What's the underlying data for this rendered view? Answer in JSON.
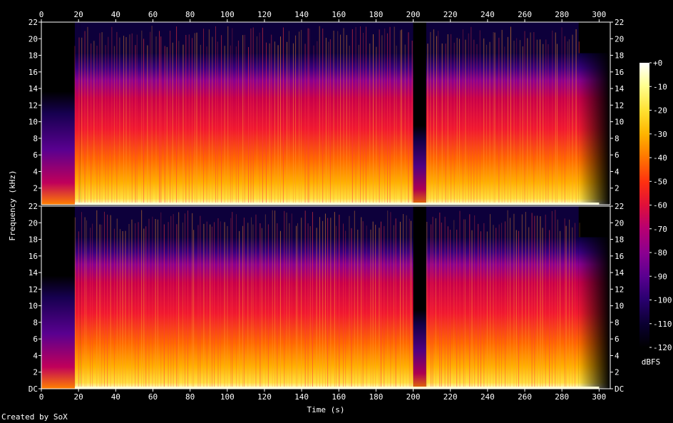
{
  "chart_data": {
    "type": "heatmap",
    "title": "",
    "xlabel": "Time (s)",
    "ylabel": "Frequency (kHz)",
    "xlim": [
      0,
      306
    ],
    "ylim": [
      0,
      22
    ],
    "x_ticks": [
      "0",
      "20",
      "40",
      "60",
      "80",
      "100",
      "120",
      "140",
      "160",
      "180",
      "200",
      "220",
      "240",
      "260",
      "280",
      "300"
    ],
    "y_ticks": [
      "DC",
      "2",
      "4",
      "6",
      "8",
      "10",
      "12",
      "14",
      "16",
      "18",
      "20",
      "22"
    ],
    "colorbar": {
      "label": "dBFS",
      "ticks": [
        "+0",
        "-10",
        "-20",
        "-30",
        "-40",
        "-50",
        "-60",
        "-70",
        "-80",
        "-90",
        "-100",
        "-110",
        "-120"
      ],
      "range": [
        -120,
        0
      ],
      "colors": [
        "#000000",
        "#0a0030",
        "#2a0070",
        "#5a0090",
        "#8a0090",
        "#b80070",
        "#e0103a",
        "#ff3010",
        "#ff7800",
        "#ffb400",
        "#ffe030",
        "#ffff90",
        "#ffffff"
      ]
    },
    "channels": 2,
    "segments": [
      {
        "start": 0,
        "end": 18,
        "kind": "quiet-intro"
      },
      {
        "start": 18,
        "end": 21,
        "kind": "loud"
      },
      {
        "start": 21,
        "end": 200,
        "kind": "loud"
      },
      {
        "start": 200,
        "end": 207,
        "kind": "gap"
      },
      {
        "start": 207,
        "end": 289,
        "kind": "loud"
      },
      {
        "start": 289,
        "end": 306,
        "kind": "fade-out"
      }
    ]
  },
  "footer": {
    "credit": "Created by SoX"
  }
}
